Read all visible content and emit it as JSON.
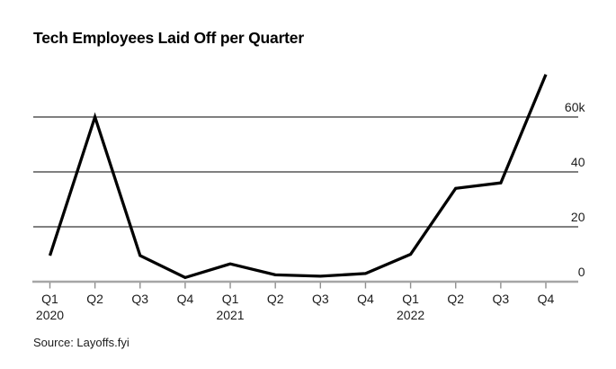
{
  "header": {
    "title": "Tech Employees Laid Off per Quarter"
  },
  "footer": {
    "source": "Source: Layoffs.fyi"
  },
  "chart_data": {
    "type": "line",
    "title": "Tech Employees Laid Off per Quarter",
    "x": [
      "Q1 2020",
      "Q2 2020",
      "Q3 2020",
      "Q4 2020",
      "Q1 2021",
      "Q2 2021",
      "Q3 2021",
      "Q4 2021",
      "Q1 2022",
      "Q2 2022",
      "Q3 2022",
      "Q4 2022"
    ],
    "categories": [
      "Q1",
      "Q2",
      "Q3",
      "Q4",
      "Q1",
      "Q2",
      "Q3",
      "Q4",
      "Q1",
      "Q2",
      "Q3",
      "Q4"
    ],
    "year_labels": [
      {
        "index": 0,
        "label": "2020"
      },
      {
        "index": 4,
        "label": "2021"
      },
      {
        "index": 8,
        "label": "2022"
      }
    ],
    "values": [
      9500,
      60000,
      9500,
      1500,
      6500,
      2500,
      2000,
      3000,
      10000,
      34000,
      36000,
      75500
    ],
    "ylim": [
      0,
      77000
    ],
    "yticks": [
      {
        "value": 0,
        "label": "0"
      },
      {
        "value": 20000,
        "label": "20"
      },
      {
        "value": 40000,
        "label": "40"
      },
      {
        "value": 60000,
        "label": "60k"
      }
    ],
    "xlabel": "",
    "ylabel": "",
    "grid": "horizontal",
    "legend": false,
    "line_color": "#000000",
    "gridline_color": "#000000",
    "baseline_color": "#a6a6a6",
    "tick_color": "#8f8f8f",
    "label_color": "#1c1c1c",
    "source": "Source: Layoffs.fyi"
  }
}
